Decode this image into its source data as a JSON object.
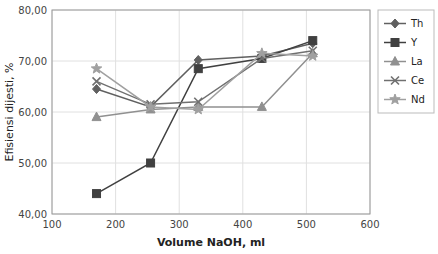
{
  "chart_data": {
    "type": "line",
    "xlabel": "Volume NaOH, ml",
    "ylabel": "Efisiensi dijesti, %",
    "x": [
      170,
      255,
      330,
      430,
      510
    ],
    "xlim": [
      100,
      600
    ],
    "ylim": [
      40,
      80
    ],
    "xticks": [
      100,
      200,
      300,
      400,
      500,
      600
    ],
    "yticks": [
      {
        "value": 40,
        "label": "40,00"
      },
      {
        "value": 50,
        "label": "50,00"
      },
      {
        "value": 60,
        "label": "60,00"
      },
      {
        "value": 70,
        "label": "70,00"
      },
      {
        "value": 80,
        "label": "80,00"
      }
    ],
    "grid": true,
    "legend": "right",
    "series": [
      {
        "name": "Th",
        "color": "#606060",
        "marker": "diamond",
        "values": [
          64.5,
          61.0,
          70.2,
          71.0,
          73.5
        ]
      },
      {
        "name": "Y",
        "color": "#404040",
        "marker": "square",
        "values": [
          44.0,
          50.0,
          68.5,
          70.5,
          74.0
        ]
      },
      {
        "name": "La",
        "color": "#909090",
        "marker": "triangle",
        "values": [
          59.0,
          60.5,
          61.0,
          61.0,
          71.5
        ]
      },
      {
        "name": "Ce",
        "color": "#707070",
        "marker": "x",
        "values": [
          66.0,
          61.5,
          62.0,
          70.5,
          72.0
        ]
      },
      {
        "name": "Nd",
        "color": "#a0a0a0",
        "marker": "star",
        "values": [
          68.5,
          61.0,
          60.5,
          71.5,
          71.0
        ]
      }
    ]
  }
}
